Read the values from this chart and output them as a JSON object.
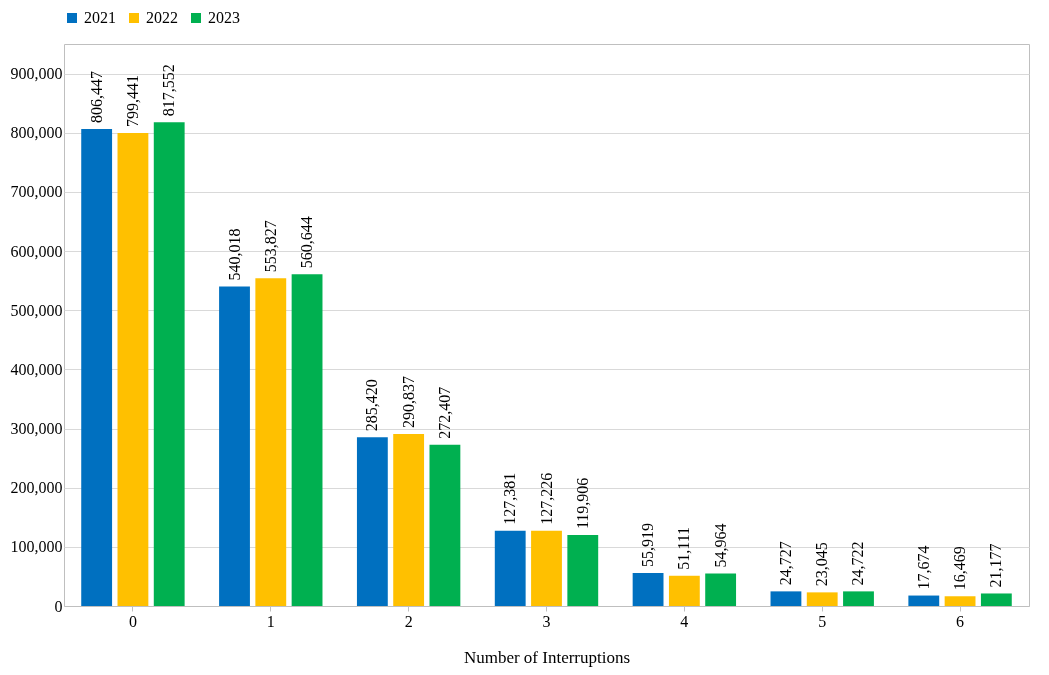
{
  "chart_data": {
    "type": "bar",
    "xlabel": "Number of Interruptions",
    "categories": [
      "0",
      "1",
      "2",
      "3",
      "4",
      "5",
      "6"
    ],
    "series": [
      {
        "name": "2021",
        "color": "#0070c0",
        "values": [
          806447,
          540018,
          285420,
          127381,
          55919,
          24727,
          17674
        ],
        "value_labels": [
          "806,447",
          "540,018",
          "285,420",
          "127,381",
          "55,919",
          "24,727",
          "17,674"
        ]
      },
      {
        "name": "2022",
        "color": "#ffc000",
        "values": [
          799441,
          553827,
          290837,
          127226,
          51111,
          23045,
          16469
        ],
        "value_labels": [
          "799,441",
          "553,827",
          "290,837",
          "127,226",
          "51,111",
          "23,045",
          "16,469"
        ]
      },
      {
        "name": "2023",
        "color": "#00b050",
        "values": [
          817552,
          560644,
          272407,
          119906,
          54964,
          24722,
          21177
        ],
        "value_labels": [
          "817,552",
          "560,644",
          "272,407",
          "119,906",
          "54,964",
          "24,722",
          "21,177"
        ]
      }
    ],
    "ylim": [
      0,
      950000
    ],
    "yticks": [
      0,
      {
        "value": 100000,
        "label": "100,000"
      },
      {
        "value": 200000,
        "label": "200,000"
      },
      {
        "value": 300000,
        "label": "300,000"
      },
      {
        "value": 400000,
        "label": "400,000"
      },
      {
        "value": 500000,
        "label": "500,000"
      },
      {
        "value": 600000,
        "label": "600,000"
      },
      {
        "value": 700000,
        "label": "700,000"
      },
      {
        "value": 800000,
        "label": "800,000"
      },
      {
        "value": 900000,
        "label": "900,000"
      }
    ],
    "grid": "y",
    "legend": "top"
  }
}
